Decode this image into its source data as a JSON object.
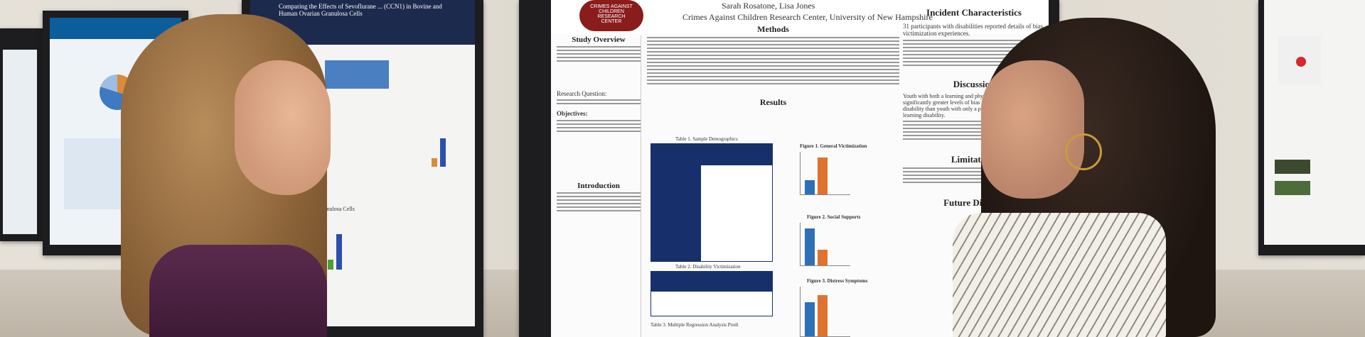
{
  "poster_center": {
    "logo_text": "CRIMES AGAINST CHILDREN RESEARCH CENTER",
    "affiliation": "Crimes Against Children Research Center, University of New Hampshire",
    "authors_partial": "Sarah Rosatone, Lisa Jones",
    "sections": {
      "study_overview": "Study Overview",
      "methods": "Methods",
      "research_question": "Research Question:",
      "objectives": "Objectives:",
      "introduction": "Introduction",
      "results": "Results",
      "incident_characteristics": "Incident Characteristics",
      "discussion": "Discussion",
      "limitations": "Limitations",
      "future_directions": "Future Directio"
    },
    "table1_title": "Table 1. Sample Demographics",
    "table2_title": "Table 2. Disability Victimization",
    "table3_title": "Table 3. Multiple Regression Analysis Predi",
    "figure1_title": "Figure 1. General Victimization",
    "figure2_title": "Figure 2. Social Supports",
    "figure3_title": "Figure 3. Distress Symptoms",
    "incident_lead": "31 participants with disabilities reported details of bias victimization experiences.",
    "discussion_lead": "Youth with both a learning and physical disability experience significantly greater levels of bias victimization related to disability than youth with only a physical disability or only a learning disability."
  },
  "poster_left": {
    "title": "Comparing the Effects of Sevoflurane ... (CCN1) in Bovine and Human Ovarian Granulosa Cells",
    "heading_results": "Human Granulosa Cells"
  }
}
